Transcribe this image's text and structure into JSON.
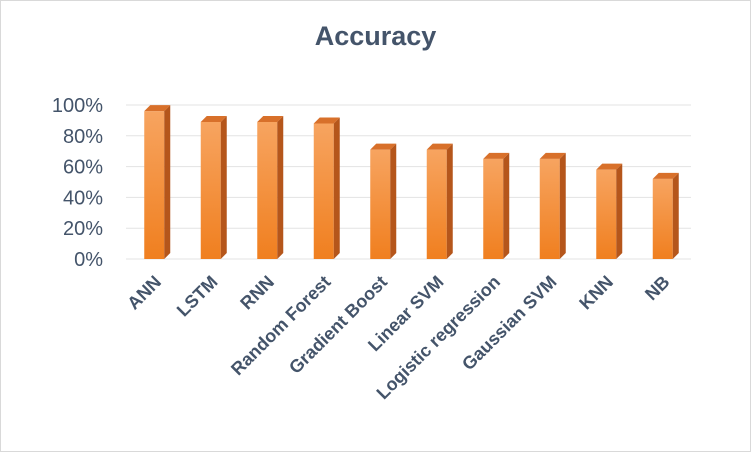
{
  "chart_data": {
    "type": "bar",
    "title": "Accuracy",
    "xlabel": "",
    "ylabel": "",
    "categories": [
      "ANN",
      "LSTM",
      "RNN",
      "Random Forest",
      "Gradient Boost",
      "Linear SVM",
      "Logistic regression",
      "Gaussian SVM",
      "KNN",
      "NB"
    ],
    "values": [
      96,
      89,
      89,
      88,
      71,
      71,
      65,
      65,
      58,
      52
    ],
    "ylim": [
      0,
      100
    ],
    "yticks": [
      "0%",
      "20%",
      "40%",
      "60%",
      "80%",
      "100%"
    ],
    "grid": true,
    "legend": "none",
    "colors": {
      "bar_front": "#f28a2e",
      "bar_front_light": "#f7a460",
      "bar_side": "#b5561b",
      "bar_top": "#d8702a",
      "grid": "#e3e3e3",
      "text": "#44546a"
    }
  }
}
